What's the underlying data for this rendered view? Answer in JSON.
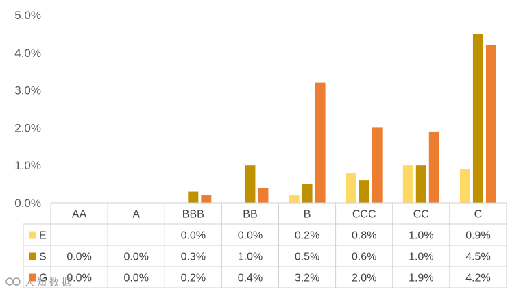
{
  "chart_data": {
    "type": "bar",
    "title": "",
    "xlabel": "",
    "ylabel": "",
    "categories": [
      "AA",
      "A",
      "BBB",
      "BB",
      "B",
      "CCC",
      "CC",
      "C"
    ],
    "ylim": [
      0,
      5
    ],
    "y_ticks": [
      "0.0%",
      "1.0%",
      "2.0%",
      "3.0%",
      "4.0%",
      "5.0%"
    ],
    "grid": false,
    "legend": "data-table",
    "series": [
      {
        "name": "E",
        "color": "#FFD966",
        "values": [
          null,
          null,
          0.0,
          0.0,
          0.2,
          0.8,
          1.0,
          0.9
        ],
        "labels": [
          "",
          "",
          "0.0%",
          "0.0%",
          "0.2%",
          "0.8%",
          "1.0%",
          "0.9%"
        ]
      },
      {
        "name": "S",
        "color": "#BF9000",
        "values": [
          0.0,
          0.0,
          0.3,
          1.0,
          0.5,
          0.6,
          1.0,
          4.5
        ],
        "labels": [
          "0.0%",
          "0.0%",
          "0.3%",
          "1.0%",
          "0.5%",
          "0.6%",
          "1.0%",
          "4.5%"
        ]
      },
      {
        "name": "G",
        "color": "#ED7D31",
        "values": [
          0.0,
          0.0,
          0.2,
          0.4,
          3.2,
          2.0,
          1.9,
          4.2
        ],
        "labels": [
          "0.0%",
          "0.0%",
          "0.2%",
          "0.4%",
          "3.2%",
          "2.0%",
          "1.9%",
          "4.2%"
        ]
      }
    ]
  },
  "watermark": "人 知 数 据"
}
